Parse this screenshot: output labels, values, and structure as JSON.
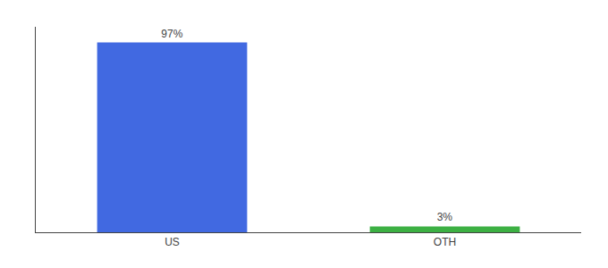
{
  "chart_data": {
    "type": "bar",
    "categories": [
      "US",
      "OTH"
    ],
    "values": [
      97,
      3
    ],
    "value_labels": [
      "97%",
      "3%"
    ],
    "colors": [
      "#4169e1",
      "#3cb043"
    ],
    "ylim": [
      0,
      105
    ],
    "data_labels": true,
    "tick_labels": "x",
    "grid": false
  }
}
